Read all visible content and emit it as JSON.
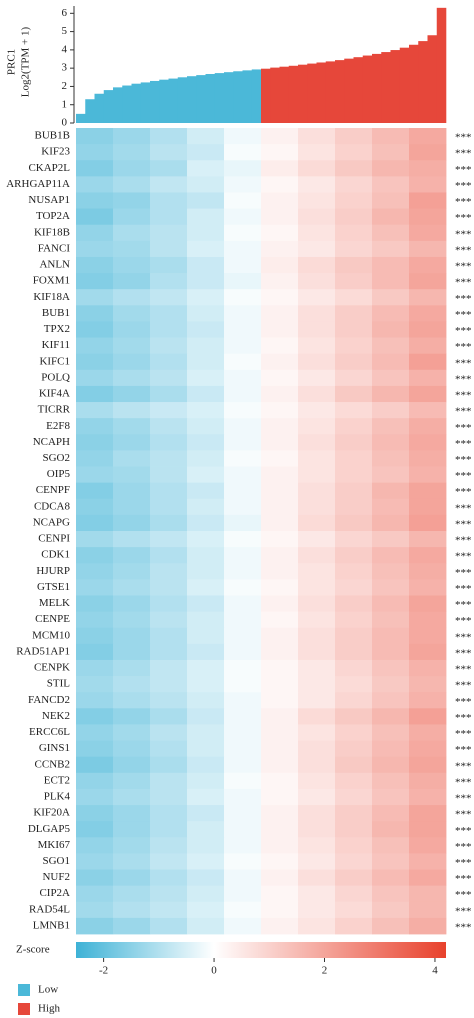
{
  "chart_data": [
    {
      "type": "bar",
      "ylabel": [
        "PRC1",
        "Log2(TPM + 1)"
      ],
      "x": [
        1,
        2,
        3,
        4,
        5,
        6,
        7,
        8,
        9,
        10,
        11,
        12,
        13,
        14,
        15,
        16,
        17,
        18,
        19,
        20,
        21,
        22,
        23,
        24,
        25,
        26,
        27,
        28,
        29,
        30,
        31,
        32,
        33,
        34,
        35,
        36,
        37,
        38,
        39,
        40
      ],
      "xlim": [
        0.5,
        40.5
      ],
      "ylim": [
        0,
        6.4
      ],
      "yticks": [
        0,
        1,
        2,
        3,
        4,
        5,
        6
      ],
      "series": [
        {
          "name": "Low",
          "color": "#4bb8d8",
          "values": [
            0.5,
            1.3,
            1.6,
            1.8,
            1.95,
            2.05,
            2.15,
            2.22,
            2.3,
            2.37,
            2.43,
            2.5,
            2.56,
            2.62,
            2.68,
            2.73,
            2.78,
            2.83,
            2.88,
            2.93,
            null,
            null,
            null,
            null,
            null,
            null,
            null,
            null,
            null,
            null,
            null,
            null,
            null,
            null,
            null,
            null,
            null,
            null,
            null,
            null
          ]
        },
        {
          "name": "High",
          "color": "#e6473a",
          "values": [
            null,
            null,
            null,
            null,
            null,
            null,
            null,
            null,
            null,
            null,
            null,
            null,
            null,
            null,
            null,
            null,
            null,
            null,
            null,
            null,
            2.97,
            3.03,
            3.08,
            3.13,
            3.19,
            3.25,
            3.31,
            3.37,
            3.44,
            3.52,
            3.6,
            3.69,
            3.78,
            3.88,
            3.99,
            4.12,
            4.28,
            4.48,
            4.8,
            6.3
          ]
        }
      ]
    },
    {
      "type": "heatmap",
      "categories": [
        "BUB1B",
        "KIF23",
        "CKAP2L",
        "ARHGAP11A",
        "NUSAP1",
        "TOP2A",
        "KIF18B",
        "FANCI",
        "ANLN",
        "FOXM1",
        "KIF18A",
        "BUB1",
        "TPX2",
        "KIF11",
        "KIFC1",
        "POLQ",
        "KIF4A",
        "TICRR",
        "E2F8",
        "NCAPH",
        "SGO2",
        "OIP5",
        "CENPF",
        "CDCA8",
        "NCAPG",
        "CENPI",
        "CDK1",
        "HJURP",
        "GTSE1",
        "MELK",
        "CENPE",
        "MCM10",
        "RAD51AP1",
        "CENPK",
        "STIL",
        "FANCD2",
        "NEK2",
        "ERCC6L",
        "GINS1",
        "CCNB2",
        "ECT2",
        "PLK4",
        "KIF20A",
        "DLGAP5",
        "MKI67",
        "SGO1",
        "NUF2",
        "CIP2A",
        "RAD54L",
        "LMNB1"
      ],
      "significance": [
        "***",
        "***",
        "***",
        "***",
        "***",
        "***",
        "***",
        "***",
        "***",
        "***",
        "***",
        "***",
        "***",
        "***",
        "***",
        "***",
        "***",
        "***",
        "***",
        "***",
        "***",
        "***",
        "***",
        "***",
        "***",
        "***",
        "***",
        "***",
        "***",
        "***",
        "***",
        "***",
        "***",
        "***",
        "***",
        "***",
        "***",
        "***",
        "***",
        "***",
        "***",
        "***",
        "***",
        "***",
        "***",
        "***",
        "***",
        "***",
        "***",
        "***"
      ],
      "values": [
        [
          -1.5,
          -1.3,
          -1.0,
          -0.6,
          -0.2,
          0.3,
          0.7,
          1.1,
          1.5,
          1.9
        ],
        [
          -1.4,
          -1.2,
          -0.9,
          -0.7,
          -0.1,
          0.2,
          0.6,
          1.0,
          1.4,
          2.0
        ],
        [
          -1.6,
          -1.3,
          -1.1,
          -0.5,
          -0.3,
          0.4,
          0.8,
          1.2,
          1.6,
          1.8
        ],
        [
          -1.3,
          -1.1,
          -0.8,
          -0.6,
          -0.2,
          0.2,
          0.5,
          0.9,
          1.3,
          1.7
        ],
        [
          -1.5,
          -1.4,
          -1.0,
          -0.8,
          -0.1,
          0.3,
          0.6,
          1.0,
          1.4,
          2.1
        ],
        [
          -1.7,
          -1.3,
          -1.0,
          -0.6,
          -0.2,
          0.3,
          0.7,
          1.1,
          1.6,
          2.0
        ],
        [
          -1.4,
          -1.1,
          -0.9,
          -0.6,
          -0.1,
          0.2,
          0.6,
          1.0,
          1.4,
          1.9
        ],
        [
          -1.3,
          -1.2,
          -0.9,
          -0.5,
          -0.2,
          0.3,
          0.5,
          0.9,
          1.2,
          1.6
        ],
        [
          -1.5,
          -1.3,
          -1.1,
          -0.7,
          -0.2,
          0.4,
          0.8,
          1.2,
          1.5,
          1.9
        ],
        [
          -1.6,
          -1.4,
          -1.0,
          -0.7,
          -0.3,
          0.3,
          0.7,
          1.1,
          1.5,
          2.0
        ],
        [
          -1.2,
          -1.0,
          -0.8,
          -0.5,
          -0.1,
          0.2,
          0.5,
          0.8,
          1.2,
          1.6
        ],
        [
          -1.5,
          -1.2,
          -1.0,
          -0.6,
          -0.2,
          0.3,
          0.7,
          1.1,
          1.5,
          1.9
        ],
        [
          -1.6,
          -1.3,
          -1.0,
          -0.7,
          -0.2,
          0.3,
          0.7,
          1.1,
          1.6,
          2.0
        ],
        [
          -1.4,
          -1.2,
          -0.9,
          -0.6,
          -0.2,
          0.2,
          0.6,
          1.0,
          1.4,
          1.8
        ],
        [
          -1.5,
          -1.3,
          -1.0,
          -0.6,
          -0.1,
          0.3,
          0.7,
          1.1,
          1.5,
          2.1
        ],
        [
          -1.3,
          -1.1,
          -0.9,
          -0.5,
          -0.2,
          0.2,
          0.5,
          0.9,
          1.3,
          1.7
        ],
        [
          -1.6,
          -1.4,
          -1.1,
          -0.7,
          -0.2,
          0.3,
          0.7,
          1.2,
          1.6,
          2.0
        ],
        [
          -1.1,
          -0.9,
          -0.7,
          -0.5,
          -0.1,
          0.2,
          0.5,
          0.8,
          1.1,
          1.5
        ],
        [
          -1.4,
          -1.2,
          -0.9,
          -0.6,
          -0.2,
          0.3,
          0.6,
          1.0,
          1.4,
          1.8
        ],
        [
          -1.5,
          -1.3,
          -1.0,
          -0.7,
          -0.2,
          0.3,
          0.7,
          1.1,
          1.5,
          1.9
        ],
        [
          -1.4,
          -1.1,
          -0.9,
          -0.6,
          -0.1,
          0.2,
          0.6,
          1.0,
          1.4,
          1.8
        ],
        [
          -1.3,
          -1.2,
          -0.9,
          -0.5,
          -0.2,
          0.3,
          0.6,
          1.0,
          1.3,
          1.7
        ],
        [
          -1.6,
          -1.3,
          -1.0,
          -0.7,
          -0.2,
          0.3,
          0.7,
          1.1,
          1.6,
          2.0
        ],
        [
          -1.5,
          -1.3,
          -1.0,
          -0.6,
          -0.2,
          0.3,
          0.7,
          1.1,
          1.5,
          2.0
        ],
        [
          -1.6,
          -1.4,
          -1.1,
          -0.7,
          -0.3,
          0.3,
          0.8,
          1.2,
          1.6,
          2.1
        ],
        [
          -1.2,
          -1.0,
          -0.8,
          -0.5,
          -0.1,
          0.2,
          0.5,
          0.9,
          1.2,
          1.6
        ],
        [
          -1.5,
          -1.3,
          -1.0,
          -0.6,
          -0.2,
          0.3,
          0.7,
          1.1,
          1.5,
          1.9
        ],
        [
          -1.4,
          -1.2,
          -0.9,
          -0.6,
          -0.2,
          0.3,
          0.6,
          1.0,
          1.4,
          1.8
        ],
        [
          -1.3,
          -1.1,
          -0.9,
          -0.5,
          -0.1,
          0.2,
          0.6,
          0.9,
          1.3,
          1.7
        ],
        [
          -1.5,
          -1.3,
          -1.0,
          -0.7,
          -0.2,
          0.3,
          0.7,
          1.1,
          1.5,
          2.0
        ],
        [
          -1.4,
          -1.2,
          -0.9,
          -0.6,
          -0.2,
          0.2,
          0.6,
          1.0,
          1.4,
          1.9
        ],
        [
          -1.5,
          -1.3,
          -1.0,
          -0.6,
          -0.2,
          0.3,
          0.7,
          1.1,
          1.5,
          1.9
        ],
        [
          -1.6,
          -1.3,
          -1.0,
          -0.7,
          -0.2,
          0.3,
          0.7,
          1.1,
          1.5,
          2.0
        ],
        [
          -1.3,
          -1.1,
          -0.8,
          -0.5,
          -0.1,
          0.2,
          0.5,
          0.9,
          1.3,
          1.7
        ],
        [
          -1.2,
          -1.0,
          -0.8,
          -0.5,
          -0.1,
          0.2,
          0.5,
          0.8,
          1.2,
          1.6
        ],
        [
          -1.3,
          -1.1,
          -0.9,
          -0.6,
          -0.2,
          0.2,
          0.5,
          0.9,
          1.3,
          1.7
        ],
        [
          -1.6,
          -1.4,
          -1.1,
          -0.7,
          -0.2,
          0.3,
          0.8,
          1.2,
          1.6,
          2.1
        ],
        [
          -1.4,
          -1.2,
          -0.9,
          -0.6,
          -0.2,
          0.3,
          0.6,
          1.0,
          1.4,
          1.8
        ],
        [
          -1.5,
          -1.3,
          -1.0,
          -0.6,
          -0.2,
          0.3,
          0.7,
          1.1,
          1.5,
          1.9
        ],
        [
          -1.7,
          -1.4,
          -1.1,
          -0.7,
          -0.2,
          0.3,
          0.7,
          1.2,
          1.6,
          2.0
        ],
        [
          -1.4,
          -1.2,
          -0.9,
          -0.6,
          -0.1,
          0.2,
          0.6,
          1.0,
          1.4,
          1.8
        ],
        [
          -1.3,
          -1.1,
          -0.9,
          -0.5,
          -0.2,
          0.2,
          0.5,
          0.9,
          1.3,
          1.7
        ],
        [
          -1.5,
          -1.3,
          -1.0,
          -0.7,
          -0.2,
          0.3,
          0.7,
          1.1,
          1.5,
          2.0
        ],
        [
          -1.6,
          -1.3,
          -1.0,
          -0.6,
          -0.2,
          0.3,
          0.7,
          1.1,
          1.6,
          2.0
        ],
        [
          -1.4,
          -1.2,
          -0.9,
          -0.6,
          -0.2,
          0.3,
          0.6,
          1.0,
          1.4,
          1.9
        ],
        [
          -1.3,
          -1.1,
          -0.8,
          -0.5,
          -0.1,
          0.2,
          0.5,
          0.9,
          1.3,
          1.7
        ],
        [
          -1.5,
          -1.3,
          -1.0,
          -0.7,
          -0.2,
          0.3,
          0.7,
          1.1,
          1.5,
          1.9
        ],
        [
          -1.3,
          -1.1,
          -0.9,
          -0.6,
          -0.2,
          0.2,
          0.5,
          0.9,
          1.3,
          1.6
        ],
        [
          -1.2,
          -1.0,
          -0.8,
          -0.5,
          -0.1,
          0.2,
          0.5,
          0.8,
          1.2,
          1.6
        ],
        [
          -1.5,
          -1.3,
          -1.0,
          -0.6,
          -0.2,
          0.3,
          0.6,
          1.0,
          1.4,
          1.8
        ]
      ],
      "colorbar": {
        "label": "Z-score",
        "lim": [
          -2.5,
          4.2
        ],
        "center": 0,
        "ticks": [
          -2,
          0,
          2,
          4
        ],
        "colors": [
          "#3eb2d6",
          "#ffffff",
          "#e8412c"
        ]
      }
    }
  ]
}
